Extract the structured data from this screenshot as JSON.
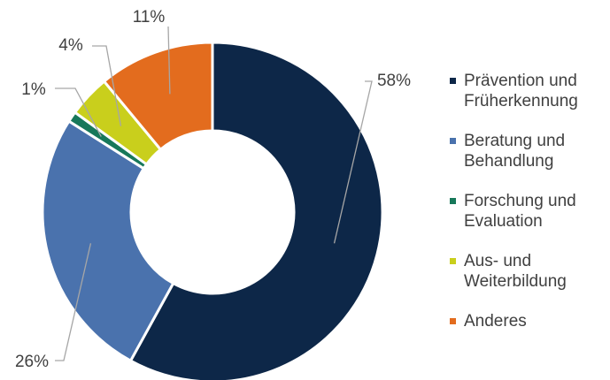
{
  "chart_data": {
    "type": "donut",
    "categories": [
      "Prävention und Früherkennung",
      "Beratung und Behandlung",
      "Forschung und Evaluation",
      "Aus- und Weiterbildung",
      "Anderes"
    ],
    "values": [
      58,
      26,
      1,
      4,
      11
    ],
    "value_labels": [
      "58%",
      "26%",
      "1%",
      "4%",
      "11%"
    ],
    "colors": [
      "#0d2748",
      "#4a72ad",
      "#17785a",
      "#c9cf1c",
      "#e36c1e"
    ],
    "legend": "right"
  }
}
